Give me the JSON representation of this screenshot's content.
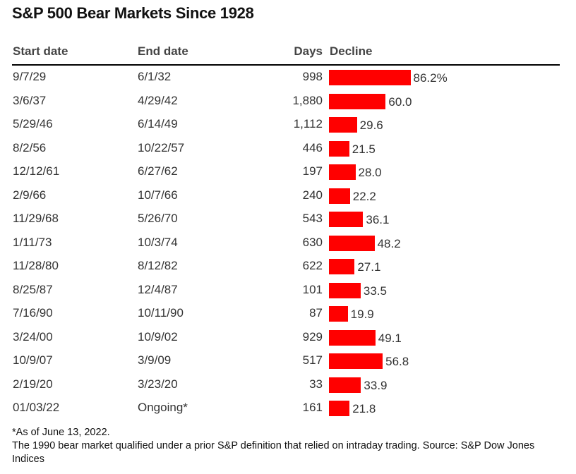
{
  "chart_data": {
    "type": "table",
    "title": "S&P 500 Bear Markets Since 1928",
    "columns": [
      "Start date",
      "End date",
      "Days",
      "Decline"
    ],
    "bar_color": "#ff0000",
    "rows": [
      {
        "start": "9/7/29",
        "end": "6/1/32",
        "days": "998",
        "decline": 86.2,
        "label": "86.2%"
      },
      {
        "start": "3/6/37",
        "end": "4/29/42",
        "days": "1,880",
        "decline": 60.0,
        "label": "60.0"
      },
      {
        "start": "5/29/46",
        "end": "6/14/49",
        "days": "1,112",
        "decline": 29.6,
        "label": "29.6"
      },
      {
        "start": "8/2/56",
        "end": "10/22/57",
        "days": "446",
        "decline": 21.5,
        "label": "21.5"
      },
      {
        "start": "12/12/61",
        "end": "6/27/62",
        "days": "197",
        "decline": 28.0,
        "label": "28.0"
      },
      {
        "start": "2/9/66",
        "end": "10/7/66",
        "days": "240",
        "decline": 22.2,
        "label": "22.2"
      },
      {
        "start": "11/29/68",
        "end": "5/26/70",
        "days": "543",
        "decline": 36.1,
        "label": "36.1"
      },
      {
        "start": "1/11/73",
        "end": "10/3/74",
        "days": "630",
        "decline": 48.2,
        "label": "48.2"
      },
      {
        "start": "11/28/80",
        "end": "8/12/82",
        "days": "622",
        "decline": 27.1,
        "label": "27.1"
      },
      {
        "start": "8/25/87",
        "end": "12/4/87",
        "days": "101",
        "decline": 33.5,
        "label": "33.5"
      },
      {
        "start": "7/16/90",
        "end": "10/11/90",
        "days": "87",
        "decline": 19.9,
        "label": "19.9"
      },
      {
        "start": "3/24/00",
        "end": "10/9/02",
        "days": "929",
        "decline": 49.1,
        "label": "49.1"
      },
      {
        "start": "10/9/07",
        "end": "3/9/09",
        "days": "517",
        "decline": 56.8,
        "label": "56.8"
      },
      {
        "start": "2/19/20",
        "end": "3/23/20",
        "days": "33",
        "decline": 33.9,
        "label": "33.9"
      },
      {
        "start": "01/03/22",
        "end": "Ongoing*",
        "days": "161",
        "decline": 21.8,
        "label": "21.8"
      }
    ],
    "notes": [
      "*As of June 13, 2022.",
      "The 1990 bear market qualified under a prior S&P definition that relied on intraday trading. Source: S&P Dow Jones Indices"
    ]
  }
}
